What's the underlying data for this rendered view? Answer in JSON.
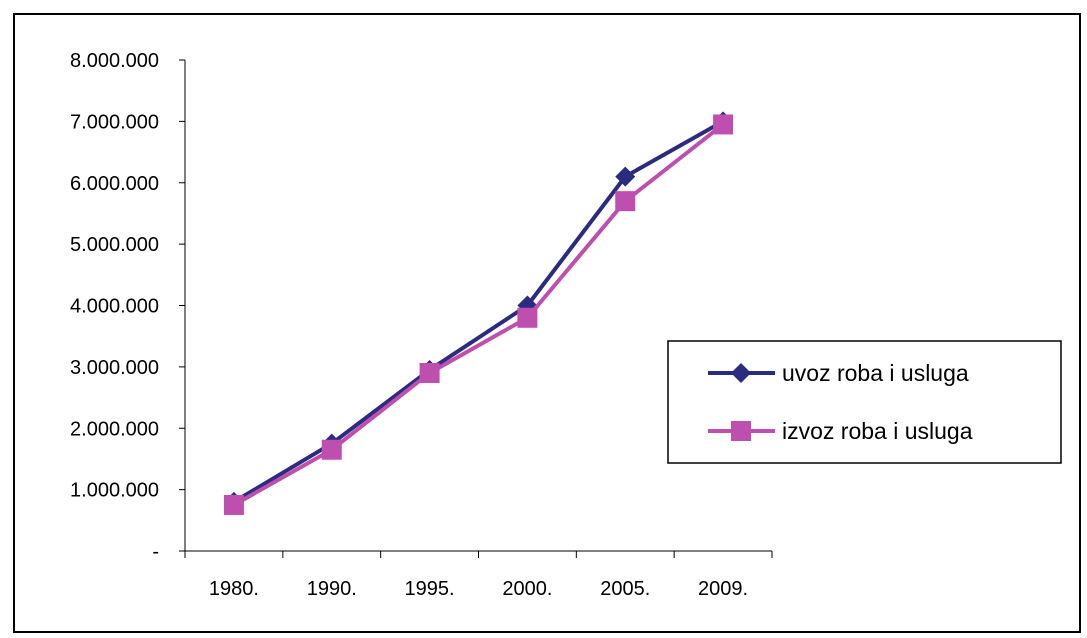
{
  "chart_data": {
    "type": "line",
    "categories": [
      "1980.",
      "1990.",
      "1995.",
      "2000.",
      "2005.",
      "2009."
    ],
    "series": [
      {
        "name": "uvoz roba i usluga",
        "values": [
          800000,
          1750000,
          2950000,
          4000000,
          6100000,
          7000000
        ],
        "color": "#2B2B7F",
        "marker": "diamond"
      },
      {
        "name": "izvoz roba i usluga",
        "values": [
          750000,
          1650000,
          2900000,
          3800000,
          5700000,
          6950000
        ],
        "color": "#BF4FAE",
        "marker": "square"
      }
    ],
    "ylim": [
      0,
      8000000
    ],
    "yticks": [
      0,
      1000000,
      2000000,
      3000000,
      4000000,
      5000000,
      6000000,
      7000000,
      8000000
    ],
    "ytick_labels": [
      "-",
      "1.000.000",
      "2.000.000",
      "3.000.000",
      "4.000.000",
      "5.000.000",
      "6.000.000",
      "7.000.000",
      "8.000.000"
    ],
    "title": "",
    "xlabel": "",
    "ylabel": "",
    "grid": false,
    "legend_position": "right"
  }
}
